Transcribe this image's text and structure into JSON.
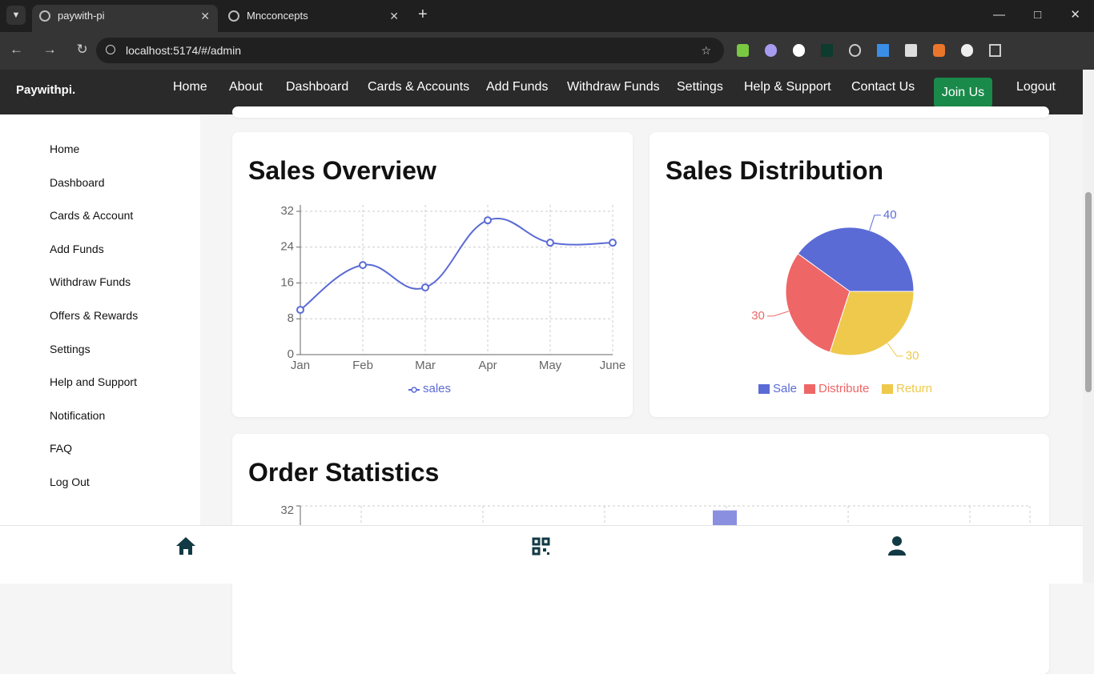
{
  "browser": {
    "tabs": [
      "paywith-pi",
      "Mncconcepts"
    ],
    "url": "localhost:5174/#/admin"
  },
  "nav": {
    "brand": "Paywithpi.",
    "links": [
      "Home",
      "About",
      "Dashboard",
      "Cards & Accounts",
      "Add Funds",
      "Withdraw Funds",
      "Settings",
      "Help & Support",
      "Contact Us"
    ],
    "join": "Join Us",
    "logout": "Logout"
  },
  "sidebar": {
    "items": [
      "Home",
      "Dashboard",
      "Cards & Account",
      "Add Funds",
      "Withdraw Funds",
      "Offers & Rewards",
      "Settings",
      "Help and Support",
      "Notification",
      "FAQ",
      "Log Out"
    ]
  },
  "chart_data": [
    {
      "type": "line",
      "title": "Sales Overview",
      "categories": [
        "Jan",
        "Feb",
        "Mar",
        "Apr",
        "May",
        "June"
      ],
      "series": [
        {
          "name": "sales",
          "color": "#5b6bd5",
          "values": [
            10,
            20,
            15,
            30,
            25,
            25
          ]
        }
      ],
      "ylim": [
        0,
        32
      ],
      "yticks": [
        0,
        8,
        16,
        24,
        32
      ],
      "grid": true
    },
    {
      "type": "pie",
      "title": "Sales Distribution",
      "categories": [
        "Sale",
        "Distribute",
        "Return"
      ],
      "values": [
        40,
        30,
        30
      ],
      "colors": [
        "#5b6bd5",
        "#ee6666",
        "#eec94b"
      ]
    },
    {
      "type": "bar",
      "title": "Order Statistics",
      "categories": [
        null,
        null,
        null,
        null,
        null,
        null
      ],
      "values": [
        null,
        null,
        null,
        31,
        null,
        null
      ],
      "color": "#8b8fe0",
      "ylim": [
        0,
        32
      ],
      "yticks": [
        32
      ],
      "grid": true
    }
  ]
}
